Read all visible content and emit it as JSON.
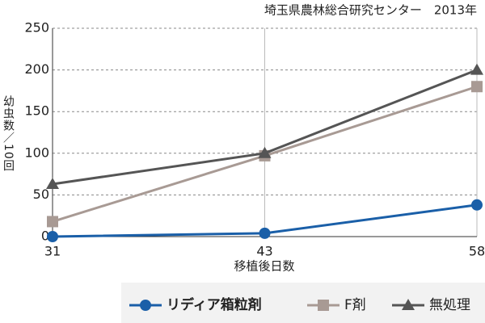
{
  "chart_data": {
    "type": "line",
    "source": "埼玉県農林総合研究センター　2013年",
    "y_label": "幼虫数／10回",
    "x_label": "移植後日数",
    "categories": [
      "31",
      "43",
      "58"
    ],
    "series": [
      {
        "name": "リディア箱粒剤",
        "color": "#1a5fa8",
        "marker": "circle",
        "values": [
          0,
          4,
          38
        ]
      },
      {
        "name": "F剤",
        "color": "#a89a94",
        "marker": "square",
        "values": [
          18,
          97,
          180
        ]
      },
      {
        "name": "無処理",
        "color": "#555555",
        "marker": "triangle",
        "values": [
          63,
          100,
          200
        ]
      }
    ],
    "ylim": [
      0,
      250
    ],
    "yticks": [
      0,
      50,
      100,
      150,
      200,
      250
    ],
    "grid": true,
    "legend": "bottom"
  }
}
